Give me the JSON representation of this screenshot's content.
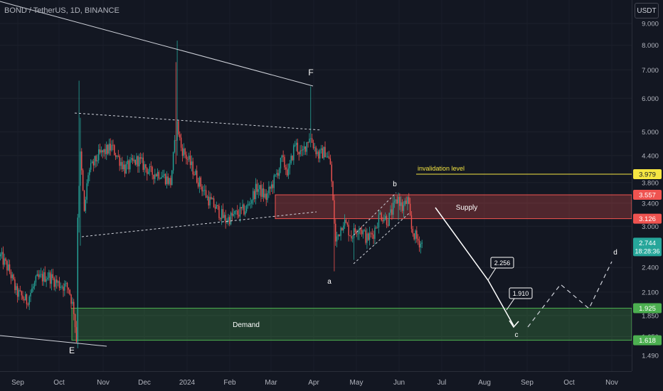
{
  "header": {
    "title": "BOND / TetherUS, 1D, BINANCE",
    "currency": "USDT"
  },
  "colors": {
    "background": "#131722",
    "up": "#26a69a",
    "down": "#ef5350",
    "supply": "#ef5350",
    "demand": "#4caf50",
    "invalidation": "#f5e642",
    "current": "#26a69a"
  },
  "chart_data": {
    "type": "candlestick",
    "scale": "log",
    "ylim": [
      1.4,
      9.4
    ],
    "x_ticks": [
      "Sep",
      "Oct",
      "Nov",
      "Dec",
      "2024",
      "Feb",
      "Mar",
      "Apr",
      "May",
      "Jun",
      "Jul",
      "Aug",
      "Sep",
      "Oct",
      "Nov"
    ],
    "y_ticks": [
      9.0,
      8.0,
      7.0,
      6.0,
      5.0,
      4.4,
      3.8,
      3.4,
      3.0,
      2.4,
      2.1,
      1.85,
      1.65,
      1.49
    ],
    "y_tick_labels": [
      "9.000",
      "8.000",
      "7.000",
      "6.000",
      "5.000",
      "4.400",
      "3.800",
      "3.400",
      "3.000",
      "2.400",
      "2.100",
      "1.850",
      "1.650",
      "1.490"
    ],
    "price_badges": [
      {
        "value": "3.979",
        "color": "#f5e642",
        "text_color": "#131722"
      },
      {
        "value": "3.557",
        "color": "#ef5350",
        "text_color": "#ffffff"
      },
      {
        "value": "3.126",
        "color": "#ef5350",
        "text_color": "#ffffff"
      },
      {
        "value": "2.744",
        "color": "#26a69a",
        "text_color": "#ffffff",
        "countdown": "18:28:36"
      },
      {
        "value": "1.925",
        "color": "#4caf50",
        "text_color": "#ffffff"
      },
      {
        "value": "1.618",
        "color": "#4caf50",
        "text_color": "#ffffff"
      }
    ],
    "zones": [
      {
        "name": "Supply",
        "low": 3.126,
        "high": 3.557
      },
      {
        "name": "Demand",
        "low": 1.618,
        "high": 1.925
      }
    ],
    "levels": [
      {
        "name": "invalidation level",
        "value": 3.979
      }
    ],
    "wave_labels": [
      "E",
      "F",
      "a",
      "b",
      "c",
      "d"
    ],
    "projection_boxes": [
      {
        "value": "2.256"
      },
      {
        "value": "1.910"
      }
    ],
    "anchors": [
      [
        0,
        2.55
      ],
      [
        7,
        2.35
      ],
      [
        12,
        2.1
      ],
      [
        20,
        2.0
      ],
      [
        28,
        2.25
      ],
      [
        36,
        2.3
      ],
      [
        44,
        2.2
      ],
      [
        52,
        2.15
      ],
      [
        56,
        1.9
      ],
      [
        58,
        1.62
      ],
      [
        59,
        3.2
      ],
      [
        61,
        4.4
      ],
      [
        64,
        3.2
      ],
      [
        67,
        4.0
      ],
      [
        75,
        4.4
      ],
      [
        85,
        4.6
      ],
      [
        95,
        4.1
      ],
      [
        105,
        4.3
      ],
      [
        115,
        4.0
      ],
      [
        122,
        4.0
      ],
      [
        130,
        3.8
      ],
      [
        135,
        5.2
      ],
      [
        138,
        4.6
      ],
      [
        145,
        4.2
      ],
      [
        150,
        3.9
      ],
      [
        158,
        3.5
      ],
      [
        165,
        3.3
      ],
      [
        172,
        3.1
      ],
      [
        180,
        3.2
      ],
      [
        188,
        3.3
      ],
      [
        196,
        3.7
      ],
      [
        203,
        3.5
      ],
      [
        210,
        3.9
      ],
      [
        215,
        4.3
      ],
      [
        220,
        4.0
      ],
      [
        225,
        4.7
      ],
      [
        230,
        4.4
      ],
      [
        236,
        4.9
      ],
      [
        240,
        4.6
      ],
      [
        243,
        4.4
      ],
      [
        248,
        4.5
      ],
      [
        252,
        4.2
      ],
      [
        254,
        3.4
      ],
      [
        256,
        2.75
      ],
      [
        262,
        3.1
      ],
      [
        268,
        2.85
      ],
      [
        274,
        3.0
      ],
      [
        280,
        2.8
      ],
      [
        285,
        2.9
      ],
      [
        290,
        3.2
      ],
      [
        296,
        3.1
      ],
      [
        300,
        3.3
      ],
      [
        304,
        3.5
      ],
      [
        307,
        3.3
      ],
      [
        311,
        3.45
      ],
      [
        314,
        2.95
      ],
      [
        318,
        2.8
      ],
      [
        322,
        2.72
      ]
    ],
    "spikes": [
      {
        "i": 60,
        "high": 6.6,
        "low": 2.9
      },
      {
        "i": 61,
        "high": 5.4,
        "low": 2.7
      },
      {
        "i": 135,
        "high": 8.2,
        "low": 4.4
      },
      {
        "i": 134,
        "high": 7.3,
        "low": 4.2
      },
      {
        "i": 237,
        "high": 6.4,
        "low": 4.6
      },
      {
        "i": 255,
        "high": 3.0,
        "low": 2.35
      },
      {
        "i": 270,
        "high": 3.05,
        "low": 2.5
      },
      {
        "i": 304,
        "high": 3.6,
        "low": 3.1
      }
    ],
    "last_price": 2.744
  }
}
